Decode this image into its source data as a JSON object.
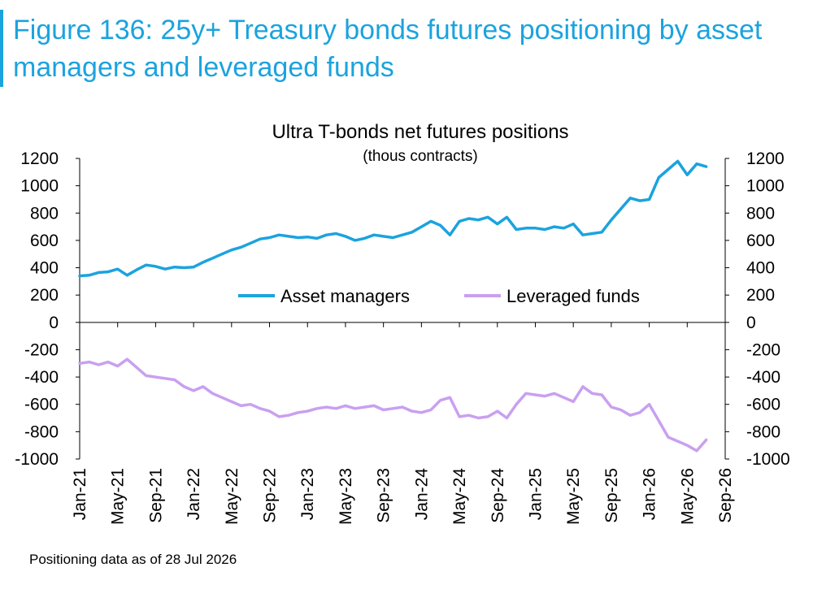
{
  "figure": {
    "title": "Figure 136: 25y+ Treasury bonds futures positioning by asset managers and leveraged funds",
    "note": "Positioning data as of 28 Jul 2026"
  },
  "chart_data": {
    "type": "line",
    "title": "Ultra T-bonds net futures positions",
    "subtitle": "(thous contracts)",
    "xlabel": "",
    "ylabel": "",
    "ylim": [
      -1000,
      1200
    ],
    "yticks": [
      1200,
      1000,
      800,
      600,
      400,
      200,
      0,
      -200,
      -400,
      -600,
      -800,
      -1000
    ],
    "xlim": [
      "2021-01",
      "2026-09"
    ],
    "xtick_labels": [
      "Jan-21",
      "May-21",
      "Sep-21",
      "Jan-22",
      "May-22",
      "Sep-22",
      "Jan-23",
      "May-23",
      "Sep-23",
      "Jan-24",
      "May-24",
      "Sep-24",
      "Jan-25",
      "May-25",
      "Sep-25",
      "Jan-26",
      "May-26",
      "Sep-26"
    ],
    "grid": false,
    "legend_position": "center",
    "colors": {
      "asset_managers": "#1ba3de",
      "leveraged_funds": "#c9a0f0",
      "title_blue": "#1ba3de"
    },
    "series": [
      {
        "name": "Asset managers",
        "x": [
          "2021-01",
          "2021-02",
          "2021-03",
          "2021-04",
          "2021-05",
          "2021-06",
          "2021-07",
          "2021-08",
          "2021-09",
          "2021-10",
          "2021-11",
          "2021-12",
          "2022-01",
          "2022-02",
          "2022-03",
          "2022-04",
          "2022-05",
          "2022-06",
          "2022-07",
          "2022-08",
          "2022-09",
          "2022-10",
          "2022-11",
          "2022-12",
          "2023-01",
          "2023-02",
          "2023-03",
          "2023-04",
          "2023-05",
          "2023-06",
          "2023-07",
          "2023-08",
          "2023-09",
          "2023-10",
          "2023-11",
          "2023-12",
          "2024-01",
          "2024-02",
          "2024-03",
          "2024-04",
          "2024-05",
          "2024-06",
          "2024-07",
          "2024-08",
          "2024-09",
          "2024-10",
          "2024-11",
          "2024-12",
          "2025-01",
          "2025-02",
          "2025-03",
          "2025-04",
          "2025-05",
          "2025-06",
          "2025-07",
          "2025-08",
          "2025-09",
          "2025-10",
          "2025-11",
          "2025-12",
          "2026-01",
          "2026-02",
          "2026-03",
          "2026-04",
          "2026-05",
          "2026-06",
          "2026-07"
        ],
        "values": [
          340,
          345,
          365,
          370,
          390,
          345,
          385,
          420,
          410,
          390,
          405,
          400,
          405,
          440,
          470,
          500,
          530,
          550,
          580,
          610,
          620,
          640,
          630,
          620,
          625,
          615,
          640,
          650,
          630,
          600,
          615,
          640,
          630,
          620,
          640,
          660,
          700,
          740,
          710,
          640,
          740,
          760,
          750,
          770,
          720,
          770,
          680,
          690,
          690,
          680,
          700,
          690,
          720,
          640,
          650,
          660,
          750,
          830,
          910,
          890,
          900,
          1060,
          1120,
          1180,
          1080,
          1160,
          1140
        ]
      },
      {
        "name": "Leveraged funds",
        "x": [
          "2021-01",
          "2021-02",
          "2021-03",
          "2021-04",
          "2021-05",
          "2021-06",
          "2021-07",
          "2021-08",
          "2021-09",
          "2021-10",
          "2021-11",
          "2021-12",
          "2022-01",
          "2022-02",
          "2022-03",
          "2022-04",
          "2022-05",
          "2022-06",
          "2022-07",
          "2022-08",
          "2022-09",
          "2022-10",
          "2022-11",
          "2022-12",
          "2023-01",
          "2023-02",
          "2023-03",
          "2023-04",
          "2023-05",
          "2023-06",
          "2023-07",
          "2023-08",
          "2023-09",
          "2023-10",
          "2023-11",
          "2023-12",
          "2024-01",
          "2024-02",
          "2024-03",
          "2024-04",
          "2024-05",
          "2024-06",
          "2024-07",
          "2024-08",
          "2024-09",
          "2024-10",
          "2024-11",
          "2024-12",
          "2025-01",
          "2025-02",
          "2025-03",
          "2025-04",
          "2025-05",
          "2025-06",
          "2025-07",
          "2025-08",
          "2025-09",
          "2025-10",
          "2025-11",
          "2025-12",
          "2026-01",
          "2026-02",
          "2026-03",
          "2026-04",
          "2026-05",
          "2026-06",
          "2026-07"
        ],
        "values": [
          -300,
          -290,
          -310,
          -290,
          -320,
          -270,
          -330,
          -390,
          -400,
          -410,
          -420,
          -470,
          -500,
          -470,
          -520,
          -550,
          -580,
          -610,
          -600,
          -630,
          -650,
          -690,
          -680,
          -660,
          -650,
          -630,
          -620,
          -630,
          -610,
          -630,
          -620,
          -610,
          -640,
          -630,
          -620,
          -650,
          -660,
          -640,
          -570,
          -550,
          -690,
          -680,
          -700,
          -690,
          -650,
          -700,
          -600,
          -520,
          -530,
          -540,
          -520,
          -550,
          -580,
          -470,
          -520,
          -530,
          -620,
          -640,
          -680,
          -660,
          -600,
          -720,
          -840,
          -870,
          -900,
          -940,
          -860
        ]
      }
    ]
  }
}
